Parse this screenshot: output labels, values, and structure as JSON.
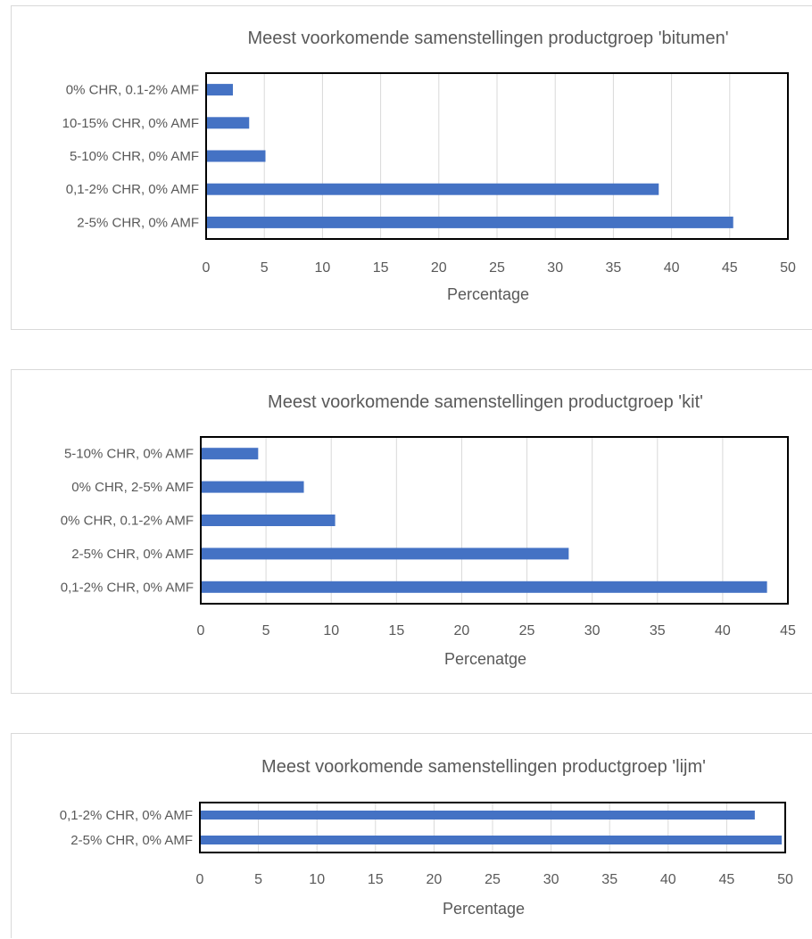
{
  "chart_data": [
    {
      "type": "bar",
      "orientation": "horizontal",
      "title": "Meest voorkomende samenstellingen productgroep 'bitumen'",
      "xlabel": "Percentage",
      "ylabel": "",
      "categories": [
        "0% CHR, 0.1-2% AMF",
        "10-15% CHR, 0% AMF",
        "5-10% CHR, 0% AMF",
        "0,1-2% CHR, 0% AMF",
        "2-5% CHR, 0% AMF"
      ],
      "values": [
        2.3,
        3.7,
        5.1,
        38.9,
        45.3
      ],
      "xlim": [
        0,
        50
      ],
      "ticks": [
        "0",
        "5",
        "10",
        "15",
        "20",
        "25",
        "30",
        "35",
        "40",
        "45",
        "50"
      ],
      "grid": true,
      "bar_color": "#4472c4"
    },
    {
      "type": "bar",
      "orientation": "horizontal",
      "title": "Meest voorkomende samenstellingen productgroep 'kit'",
      "xlabel": "Percenatge",
      "ylabel": "",
      "categories": [
        "5-10% CHR, 0% AMF",
        "0% CHR, 2-5% AMF",
        "0% CHR, 0.1-2% AMF",
        "2-5% CHR, 0% AMF",
        "0,1-2% CHR, 0% AMF"
      ],
      "values": [
        4.4,
        7.9,
        10.3,
        28.2,
        43.4
      ],
      "xlim": [
        0,
        45
      ],
      "ticks": [
        "0",
        "5",
        "10",
        "15",
        "20",
        "25",
        "30",
        "35",
        "40",
        "45"
      ],
      "grid": true,
      "bar_color": "#4472c4"
    },
    {
      "type": "bar",
      "orientation": "horizontal",
      "title": "Meest voorkomende samenstellingen productgroep 'lijm'",
      "xlabel": "Percentage",
      "ylabel": "",
      "categories": [
        "0,1-2% CHR, 0% AMF",
        "2-5% CHR, 0% AMF"
      ],
      "values": [
        47.4,
        49.7
      ],
      "xlim": [
        0,
        50
      ],
      "ticks": [
        "0",
        "5",
        "10",
        "15",
        "20",
        "25",
        "30",
        "35",
        "40",
        "45",
        "50"
      ],
      "grid": true,
      "bar_color": "#4472c4"
    }
  ]
}
